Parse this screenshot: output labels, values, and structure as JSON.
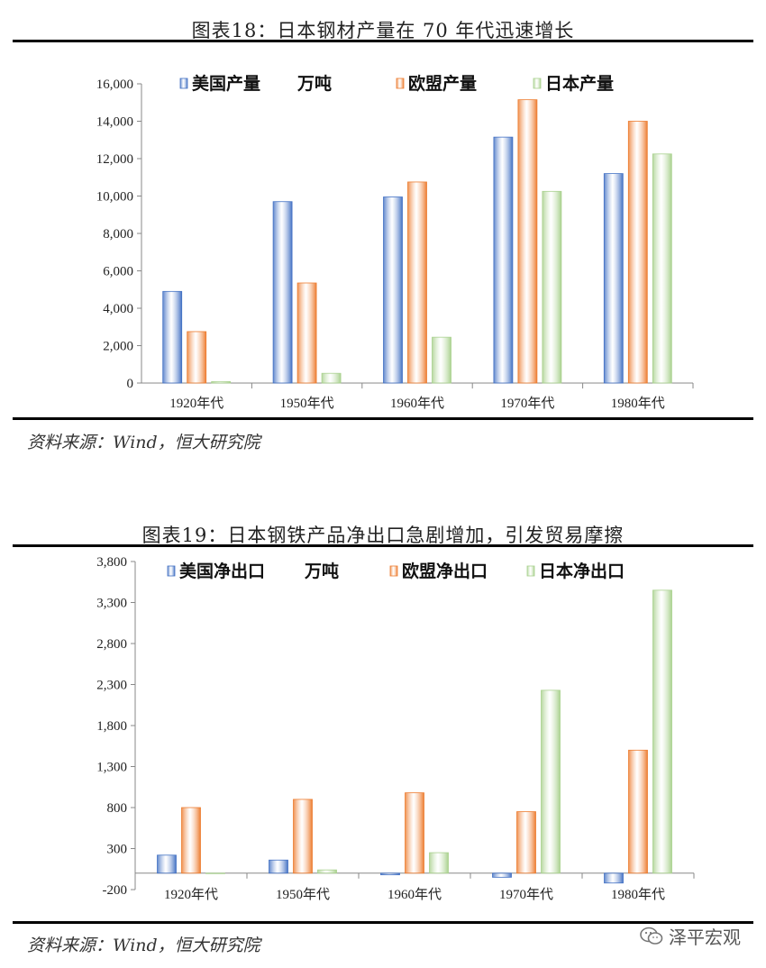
{
  "figure1": {
    "title": "图表18：日本钢材产量在 70 年代迅速增长",
    "source": "资料来源：Wind，恒大研究院"
  },
  "figure2": {
    "title": "图表19：日本钢铁产品净出口急剧增加，引发贸易摩擦",
    "source": "资料来源：Wind，恒大研究院"
  },
  "watermark": {
    "text": "泽平宏观",
    "icon": "wechat-icon"
  },
  "colors": {
    "usa": "#4472C4",
    "europe": "#ED7D31",
    "japan": "#A9D18E"
  },
  "chart_data": [
    {
      "type": "bar",
      "categories": [
        "1920年代",
        "1950年代",
        "1960年代",
        "1970年代",
        "1980年代"
      ],
      "series": [
        {
          "name": "美国产量",
          "values": [
            4900,
            9700,
            9950,
            13150,
            11200
          ]
        },
        {
          "name": "欧盟产量",
          "values": [
            2750,
            5350,
            10750,
            15150,
            14000
          ]
        },
        {
          "name": "日本产量",
          "values": [
            80,
            520,
            2450,
            10250,
            12250
          ]
        }
      ],
      "unit": "万吨",
      "ylim": [
        0,
        16000
      ],
      "yticks": [
        0,
        2000,
        4000,
        6000,
        8000,
        10000,
        12000,
        14000,
        16000
      ],
      "ytick_labels": [
        "0",
        "2,000",
        "4,000",
        "6,000",
        "8,000",
        "10,000",
        "12,000",
        "14,000",
        "16,000"
      ],
      "legend": "top",
      "grid": false
    },
    {
      "type": "bar",
      "categories": [
        "1920年代",
        "1950年代",
        "1960年代",
        "1970年代",
        "1980年代"
      ],
      "series": [
        {
          "name": "美国净出口",
          "values": [
            220,
            160,
            -20,
            -50,
            -120
          ]
        },
        {
          "name": "欧盟净出口",
          "values": [
            800,
            900,
            980,
            750,
            1500
          ]
        },
        {
          "name": "日本净出口",
          "values": [
            0,
            40,
            250,
            2230,
            3450
          ]
        }
      ],
      "unit": "万吨",
      "ylim": [
        -200,
        3800
      ],
      "yticks": [
        -200,
        300,
        800,
        1300,
        1800,
        2300,
        2800,
        3300,
        3800
      ],
      "ytick_labels": [
        "-200",
        "300",
        "800",
        "1,300",
        "1,800",
        "2,300",
        "2,800",
        "3,300",
        "3,800"
      ],
      "legend": "top",
      "grid": false
    }
  ]
}
